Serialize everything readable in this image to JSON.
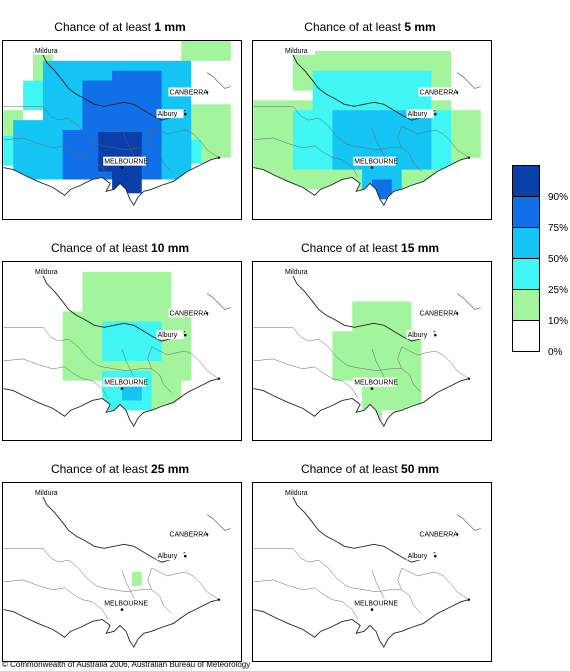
{
  "panels": [
    {
      "prefix": "Chance of at least ",
      "amount": "1 mm"
    },
    {
      "prefix": "Chance of at least ",
      "amount": "5 mm"
    },
    {
      "prefix": "Chance of at least ",
      "amount": "10 mm"
    },
    {
      "prefix": "Chance of at least ",
      "amount": "15 mm"
    },
    {
      "prefix": "Chance of at least ",
      "amount": "25 mm"
    },
    {
      "prefix": "Chance of at least ",
      "amount": "50 mm"
    }
  ],
  "cities": {
    "mildura": "Mildura",
    "canberra": "CANBERRA",
    "albury": "Albury",
    "melbourne": "MELBOURNE"
  },
  "legend": {
    "labels": [
      "90%",
      "75%",
      "50%",
      "25%",
      "10%",
      "0%"
    ],
    "colors": [
      "#0a3ea8",
      "#1170e8",
      "#14c4f4",
      "#3ff6f4",
      "#a2f59d",
      "#ffffff"
    ]
  },
  "copyright": "© Commonwealth of Australia 2006, Australian Bureau of Meteorology"
}
